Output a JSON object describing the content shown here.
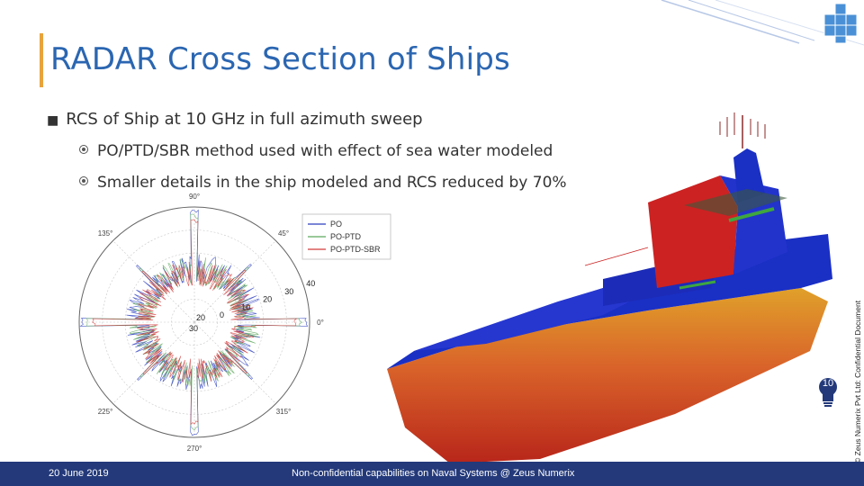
{
  "slide": {
    "title": "RADAR Cross Section of Ships",
    "bullet_main": "RCS of Ship at 10 GHz in full azimuth sweep",
    "sub_bullets": [
      "PO/PTD/SBR method used with effect of sea water modeled",
      "Smaller details in the ship modeled and RCS reduced by 70%"
    ],
    "side_note": "© Zeus Numerix Pvt Ltd: Confidential Document",
    "footer": {
      "date": "20 June 2019",
      "center": "Non-confidential capabilities on Naval Systems @ Zeus Numerix",
      "page": "10"
    },
    "colors": {
      "title": "#2b66b1",
      "accent": "#e8a33d",
      "footer": "#23397a"
    },
    "icons": [
      "square-bullet-icon",
      "circle-bullet-icon",
      "cube-logo-icon",
      "lightbulb-icon"
    ]
  },
  "polar_plot": {
    "angle_labels": [
      "90°",
      "45°",
      "0°",
      "315°",
      "270°",
      "225°",
      "180°",
      "135°"
    ],
    "radial_labels": [
      "40",
      "30",
      "20",
      "10",
      "0"
    ],
    "inner_labels": [
      "20",
      "30"
    ],
    "legend": [
      {
        "name": "PO",
        "color": "#2d3fbf"
      },
      {
        "name": "PO-PTD",
        "color": "#5ca85c"
      },
      {
        "name": "PO-PTD-SBR",
        "color": "#d23a3a"
      }
    ]
  }
}
